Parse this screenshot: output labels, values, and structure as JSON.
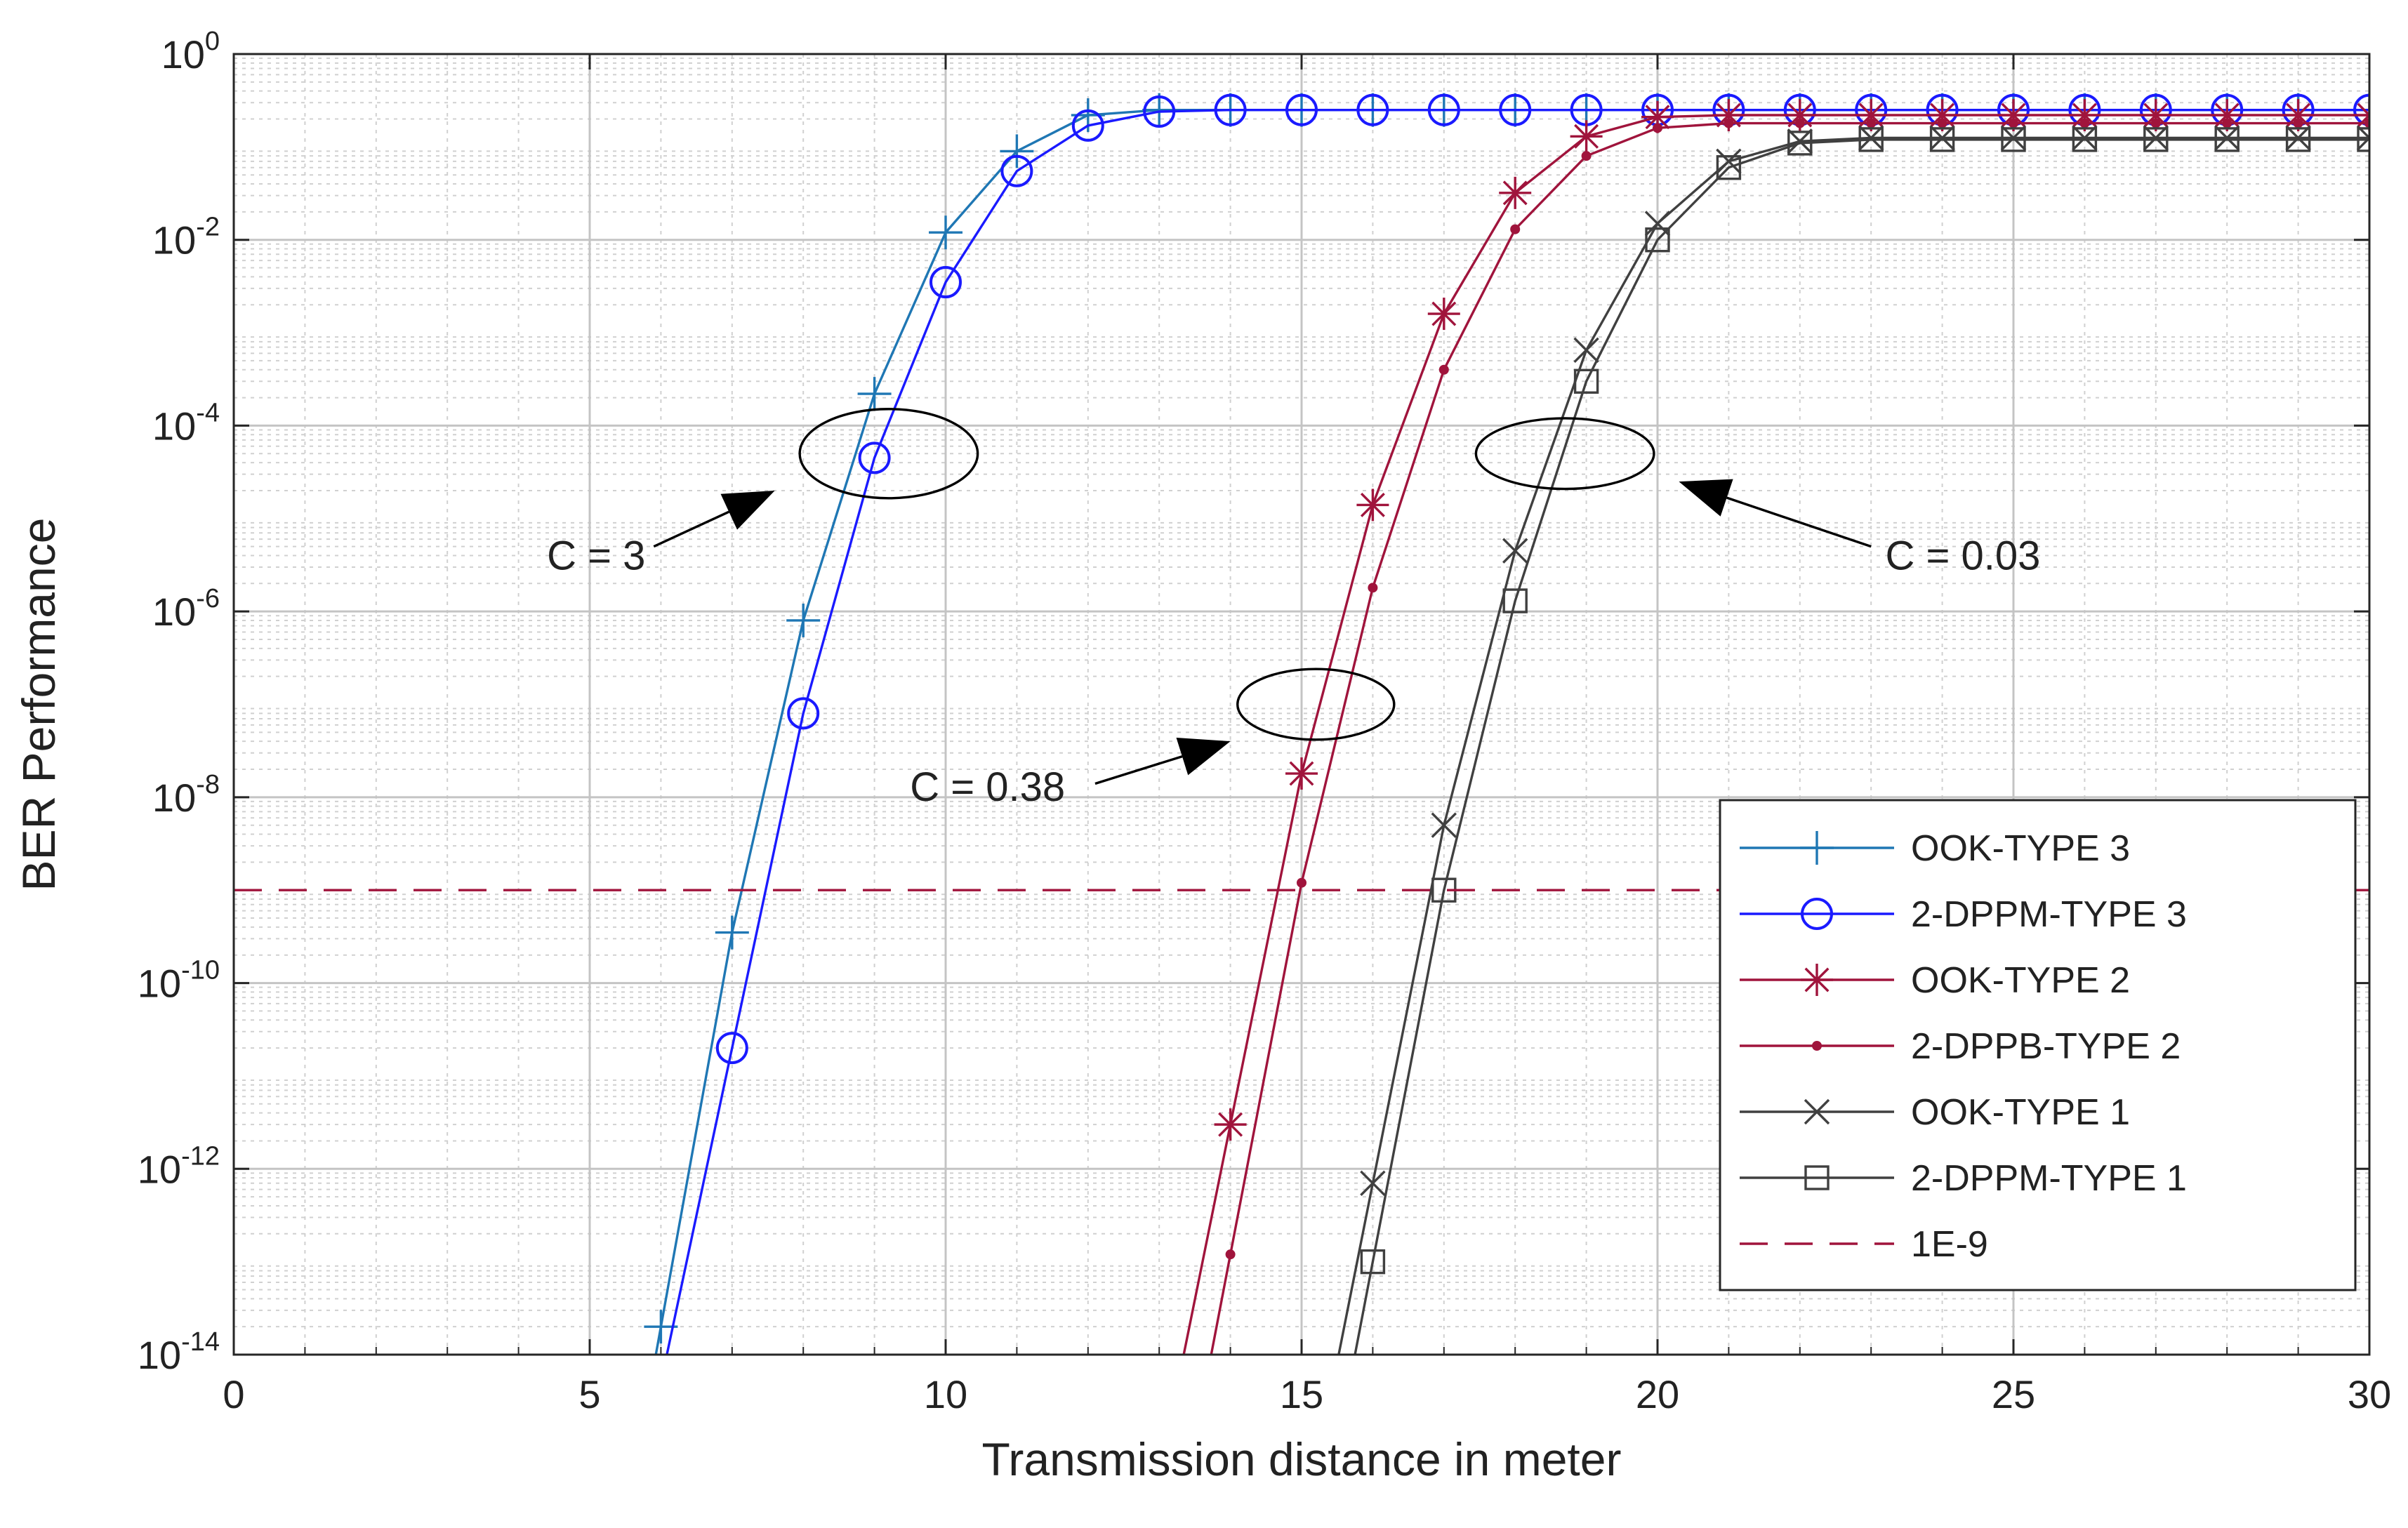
{
  "chart_data": {
    "type": "line",
    "xlabel": "Transmission distance in meter",
    "ylabel": "BER Performance",
    "xlim": [
      0,
      30
    ],
    "ylim": [
      1e-14,
      1
    ],
    "yscale": "log",
    "grid": true,
    "minor_grid": true,
    "legend_position": "bottom-right",
    "x_ticks": [
      "0",
      "5",
      "10",
      "15",
      "20",
      "25",
      "30"
    ],
    "y_ticks": [
      {
        "base": "10",
        "exp": "0",
        "value": 1
      },
      {
        "base": "10",
        "exp": "-2",
        "value": 0.01
      },
      {
        "base": "10",
        "exp": "-4",
        "value": 0.0001
      },
      {
        "base": "10",
        "exp": "-6",
        "value": 1e-06
      },
      {
        "base": "10",
        "exp": "-8",
        "value": 1e-08
      },
      {
        "base": "10",
        "exp": "-10",
        "value": 1e-10
      },
      {
        "base": "10",
        "exp": "-12",
        "value": 1e-12
      },
      {
        "base": "10",
        "exp": "-14",
        "value": 1e-14
      }
    ],
    "series": [
      {
        "name": "OOK-TYPE 3",
        "color": "#1f77b4",
        "marker": "plus",
        "x": [
          6,
          7,
          8,
          9,
          10,
          11,
          12,
          13,
          14,
          15,
          16,
          17,
          18,
          19,
          20,
          21,
          22,
          23,
          24,
          25,
          26,
          27,
          28,
          29,
          30
        ],
        "y": [
          2e-14,
          3.5e-10,
          8e-07,
          0.00022,
          0.012,
          0.09,
          0.22,
          0.25,
          0.25,
          0.25,
          0.25,
          0.25,
          0.25,
          0.25,
          0.25,
          0.25,
          0.25,
          0.25,
          0.25,
          0.25,
          0.25,
          0.25,
          0.25,
          0.25,
          0.25
        ]
      },
      {
        "name": "2-DPPM-TYPE 3",
        "color": "#1a1aff",
        "marker": "circle",
        "x": [
          7,
          8,
          9,
          10,
          11,
          12,
          13,
          14,
          15,
          16,
          17,
          18,
          19,
          20,
          21,
          22,
          23,
          24,
          25,
          26,
          27,
          28,
          29,
          30
        ],
        "y": [
          2e-11,
          8e-08,
          4.5e-05,
          0.0035,
          0.055,
          0.17,
          0.24,
          0.25,
          0.25,
          0.25,
          0.25,
          0.25,
          0.25,
          0.25,
          0.25,
          0.25,
          0.25,
          0.25,
          0.25,
          0.25,
          0.25,
          0.25,
          0.25,
          0.25
        ]
      },
      {
        "name": "OOK-TYPE 2",
        "color": "#a0143c",
        "marker": "asterisk",
        "x": [
          14,
          15,
          16,
          17,
          18,
          19,
          20,
          21,
          22,
          23,
          24,
          25,
          26,
          27,
          28,
          29,
          30
        ],
        "y": [
          3e-12,
          1.8e-08,
          1.4e-05,
          0.0016,
          0.032,
          0.13,
          0.21,
          0.22,
          0.22,
          0.22,
          0.22,
          0.22,
          0.22,
          0.22,
          0.22,
          0.22,
          0.22
        ]
      },
      {
        "name": "2-DPPB-TYPE 2",
        "color": "#a0143c",
        "marker": "dot",
        "x": [
          14,
          15,
          16,
          17,
          18,
          19,
          20,
          21,
          22,
          23,
          24,
          25,
          26,
          27,
          28,
          29,
          30
        ],
        "y": [
          1.2e-13,
          1.2e-09,
          1.8e-06,
          0.0004,
          0.013,
          0.08,
          0.16,
          0.18,
          0.18,
          0.18,
          0.18,
          0.18,
          0.18,
          0.18,
          0.18,
          0.18,
          0.18
        ]
      },
      {
        "name": "OOK-TYPE 1",
        "color": "#404040",
        "marker": "x",
        "x": [
          16,
          17,
          18,
          19,
          20,
          21,
          22,
          23,
          24,
          25,
          26,
          27,
          28,
          29,
          30
        ],
        "y": [
          7e-13,
          5e-09,
          4.5e-06,
          0.00065,
          0.015,
          0.07,
          0.115,
          0.125,
          0.125,
          0.125,
          0.125,
          0.125,
          0.125,
          0.125,
          0.125
        ]
      },
      {
        "name": "2-DPPM-TYPE 1",
        "color": "#404040",
        "marker": "square",
        "x": [
          16,
          17,
          18,
          19,
          20,
          21,
          22,
          23,
          24,
          25,
          26,
          27,
          28,
          29,
          30
        ],
        "y": [
          1e-13,
          1e-09,
          1.3e-06,
          0.0003,
          0.01,
          0.06,
          0.11,
          0.12,
          0.12,
          0.12,
          0.12,
          0.12,
          0.12,
          0.12,
          0.12
        ]
      },
      {
        "name": "1E-9",
        "color": "#a0143c",
        "marker": "none",
        "dash": true,
        "x": [
          0,
          30
        ],
        "y": [
          1e-09,
          1e-09
        ]
      }
    ],
    "annotations": [
      {
        "text": "C = 3",
        "x": 4.4,
        "y": 4e-06,
        "ellipse_center": [
          9.2,
          5e-05
        ],
        "ellipse_radii_data": [
          1.25,
          0.48
        ],
        "arrow_from": [
          5.9,
          5e-06
        ],
        "arrow_to": [
          7.6,
          2e-05
        ]
      },
      {
        "text": "C = 0.38",
        "x": 9.5,
        "y": 1.3e-08,
        "ellipse_center": [
          15.2,
          1e-07
        ],
        "ellipse_radii_data": [
          1.1,
          0.38
        ],
        "arrow_from": [
          12.1,
          1.4e-08
        ],
        "arrow_to": [
          14.0,
          4e-08
        ]
      },
      {
        "text": "C = 0.03",
        "x": 23.2,
        "y": 4e-06,
        "ellipse_center": [
          18.7,
          5e-05
        ],
        "ellipse_radii_data": [
          1.25,
          0.38
        ],
        "arrow_from": [
          23.0,
          5e-06
        ],
        "arrow_to": [
          20.3,
          2.5e-05
        ]
      }
    ]
  }
}
